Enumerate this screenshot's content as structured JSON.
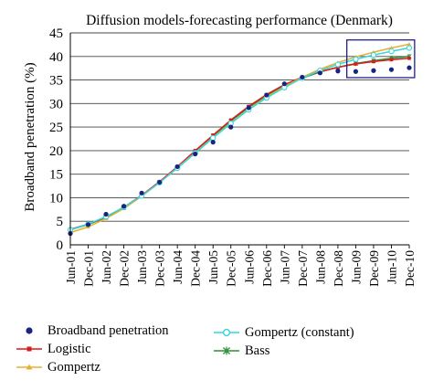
{
  "chart_data": {
    "type": "line",
    "title": "Diffusion models-forecasting performance (Denmark)",
    "ylabel": "Broadband penetration (%)",
    "xlabel": "",
    "ylim": [
      0,
      45
    ],
    "yticks": [
      0,
      5,
      10,
      15,
      20,
      25,
      30,
      35,
      40,
      45
    ],
    "grid": "horizontal",
    "legend_position": "bottom",
    "highlight_box": {
      "x_from": "Jun-09",
      "x_to": "Dec-10",
      "y_from": 35.5,
      "y_to": 43.5,
      "color": "#1f1f8f"
    },
    "categories": [
      "Jun-01",
      "Dec-01",
      "Jun-02",
      "Dec-02",
      "Jun-03",
      "Dec-03",
      "Jun-04",
      "Dec-04",
      "Jun-05",
      "Dec-05",
      "Jun-06",
      "Dec-06",
      "Jun-07",
      "Dec-07",
      "Jun-08",
      "Dec-08",
      "Jun-09",
      "Dec-09",
      "Jun-10",
      "Dec-10"
    ],
    "series": [
      {
        "name": "Broadband penetration",
        "style": "points",
        "color": "#1a237e",
        "marker": "dot",
        "values": [
          2.4,
          4.3,
          6.5,
          8.2,
          11.0,
          13.3,
          16.6,
          19.3,
          21.8,
          25.0,
          29.1,
          31.8,
          34.2,
          35.6,
          36.5,
          36.9,
          36.8,
          37.0,
          37.2,
          37.6
        ]
      },
      {
        "name": "Logistic",
        "style": "line",
        "color": "#d81b1b",
        "marker": "square",
        "values": [
          3.3,
          4.4,
          5.9,
          8.0,
          10.5,
          13.4,
          16.6,
          20.0,
          23.3,
          26.5,
          29.4,
          31.9,
          34.0,
          35.6,
          36.8,
          37.7,
          38.4,
          38.9,
          39.3,
          39.6
        ]
      },
      {
        "name": "Gompertz",
        "style": "line",
        "color": "#e8b030",
        "marker": "triangle",
        "values": [
          2.6,
          3.8,
          5.6,
          7.7,
          10.3,
          13.2,
          16.4,
          19.6,
          22.8,
          25.9,
          28.8,
          31.4,
          33.6,
          35.6,
          37.3,
          38.7,
          39.9,
          40.9,
          41.8,
          42.6
        ]
      },
      {
        "name": "Gompertz (constant)",
        "style": "line",
        "color": "#34d6e0",
        "marker": "circle-open",
        "values": [
          3.2,
          4.4,
          6.0,
          8.0,
          10.4,
          13.2,
          16.3,
          19.5,
          22.7,
          25.8,
          28.7,
          31.2,
          33.4,
          35.4,
          37.0,
          38.3,
          39.4,
          40.3,
          41.1,
          41.8
        ]
      },
      {
        "name": "Bass",
        "style": "line",
        "color": "#2f8f3a",
        "marker": "star",
        "values": [
          3.2,
          4.3,
          5.8,
          7.9,
          10.4,
          13.3,
          16.5,
          19.8,
          23.1,
          26.3,
          29.2,
          31.7,
          33.8,
          35.4,
          36.7,
          37.7,
          38.5,
          39.1,
          39.6,
          40.0
        ]
      }
    ]
  },
  "legend": [
    {
      "label": "Broadband penetration"
    },
    {
      "label": "Logistic"
    },
    {
      "label": "Gompertz"
    },
    {
      "label": "Gompertz (constant)"
    },
    {
      "label": "Bass"
    }
  ]
}
